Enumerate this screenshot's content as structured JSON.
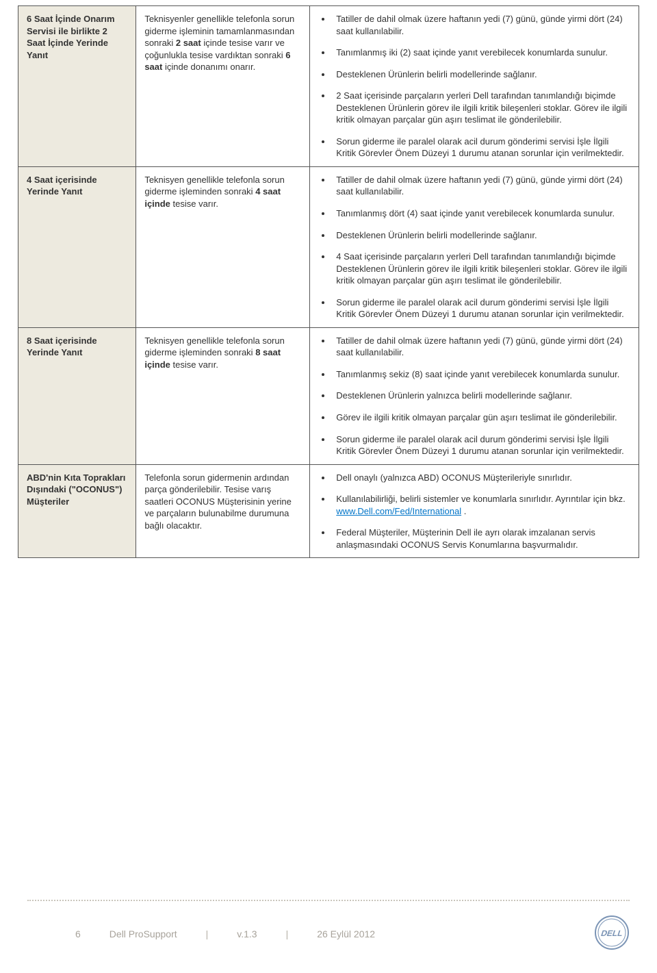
{
  "rows": [
    {
      "label_html": "6 Saat İçinde Onarım Servisi ile birlikte <b>2 Saat İçinde</b> Yerinde Yanıt",
      "desc_html": "Teknisyenler genellikle telefonla sorun giderme işleminin tamamlanmasından sonraki <b>2 saat</b> içinde tesise varır ve çoğunlukla tesise vardıktan sonraki <b>6 saat</b> içinde donanımı onarır.",
      "bullets": [
        "Tatiller de dahil olmak üzere haftanın yedi (7) günü, günde yirmi dört (24) saat kullanılabilir.",
        "Tanımlanmış iki (2) saat içinde yanıt verebilecek konumlarda sunulur.",
        "Desteklenen Ürünlerin belirli modellerinde sağlanır.",
        "2 Saat içerisinde parçaların yerleri Dell tarafından tanımlandığı biçimde Desteklenen Ürünlerin görev ile ilgili kritik bileşenleri stoklar. Görev ile ilgili kritik olmayan parçalar gün aşırı teslimat ile gönderilebilir.",
        "Sorun giderme ile paralel olarak acil durum gönderimi servisi İşle İlgili Kritik Görevler Önem Düzeyi 1 durumu atanan sorunlar için verilmektedir."
      ]
    },
    {
      "label_html": "<b>4 Saat içerisinde</b> Yerinde Yanıt",
      "desc_html": "Teknisyen genellikle telefonla sorun giderme işleminden sonraki <b>4 saat içinde</b> tesise varır.",
      "bullets": [
        "Tatiller de dahil olmak üzere haftanın yedi (7) günü, günde yirmi dört (24) saat kullanılabilir.",
        "Tanımlanmış dört (4) saat içinde yanıt verebilecek konumlarda sunulur.",
        "Desteklenen Ürünlerin belirli modellerinde sağlanır.",
        "4 Saat içerisinde parçaların yerleri Dell tarafından tanımlandığı biçimde Desteklenen Ürünlerin görev ile ilgili kritik bileşenleri stoklar. Görev ile ilgili kritik olmayan parçalar gün aşırı teslimat ile gönderilebilir.",
        "Sorun giderme ile paralel olarak acil durum gönderimi servisi İşle İlgili Kritik Görevler Önem Düzeyi 1 durumu atanan sorunlar için verilmektedir."
      ]
    },
    {
      "label_html": "<b>8 Saat içerisinde</b> Yerinde Yanıt",
      "desc_html": "Teknisyen genellikle telefonla sorun giderme işleminden sonraki <b>8 saat içinde</b> tesise varır.",
      "bullets": [
        "Tatiller de dahil olmak üzere haftanın yedi (7) günü, günde yirmi dört (24) saat kullanılabilir.",
        "Tanımlanmış sekiz (8) saat içinde yanıt verebilecek konumlarda sunulur.",
        "Desteklenen Ürünlerin yalnızca belirli modellerinde sağlanır.",
        "Görev ile ilgili kritik olmayan parçalar gün aşırı teslimat ile gönderilebilir.",
        "Sorun giderme ile paralel olarak acil durum gönderimi servisi İşle İlgili Kritik Görevler Önem Düzeyi 1 durumu atanan sorunlar için verilmektedir."
      ]
    },
    {
      "label_html": "<b>ABD'nin Kıta Toprakları Dışındaki (\"OCONUS\") Müşteriler</b>",
      "desc_html": "Telefonla sorun gidermenin ardından parça gönderilebilir. Tesise varış saatleri OCONUS Müşterisinin yerine ve parçaların bulunabilme durumuna bağlı olacaktır.",
      "bullets_html": [
        "Dell onaylı (yalnızca ABD) OCONUS Müşterileriyle sınırlıdır.",
        "Kullanılabilirliği, belirli sistemler ve konumlarla sınırlıdır. Ayrıntılar için bkz.<br><a class=\"link\" data-name=\"dell-fed-intl-link\" data-interactable=\"true\" href=\"#\">www.Dell.com/Fed/International</a> .",
        "Federal Müşteriler, Müşterinin Dell ile ayrı olarak imzalanan servis anlaşmasındaki OCONUS Servis Konumlarına başvurmalıdır."
      ]
    }
  ],
  "footer": {
    "page_number": "6",
    "doc_title": "Dell ProSupport",
    "version": "v.1.3",
    "date": "26 Eylül 2012",
    "separator": "|"
  },
  "colors": {
    "label_bg": "#edeadf",
    "border": "#555555",
    "text": "#333333",
    "link": "#0074c8",
    "footer_text": "#a7a29a"
  }
}
